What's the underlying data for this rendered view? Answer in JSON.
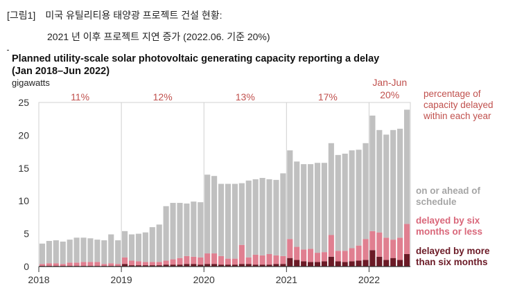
{
  "caption": {
    "tag": "[그림1]",
    "line1": "미국 유틸리티용 태양광 프로젝트 건설 현황:",
    "line2": "2021 년 이후 프로젝트 지연 증가 (2022.06. 기준 20%)"
  },
  "chart_data": {
    "type": "bar",
    "stacked": true,
    "title": "Planned utility-scale solar photovoltaic generating capacity reporting a delay",
    "subtitle": "(Jan 2018–Jun 2022)",
    "ylabel": "gigawatts",
    "ylim": [
      0,
      25
    ],
    "yticks": [
      "0",
      "5",
      "10",
      "15",
      "20",
      "25"
    ],
    "xticks": [
      "2018",
      "2019",
      "2020",
      "2021",
      "2022"
    ],
    "grid": "vertical year lines",
    "legend_placement": "right",
    "annotations": [
      {
        "text": "11%",
        "period": "2018"
      },
      {
        "text": "12%",
        "period": "2019"
      },
      {
        "text": "13%",
        "period": "2020"
      },
      {
        "text": "17%",
        "period": "2021"
      },
      {
        "text": "Jan-Jun",
        "period": "2022"
      },
      {
        "text": "20%",
        "period": "2022"
      }
    ],
    "categories": [
      "2018-01",
      "2018-02",
      "2018-03",
      "2018-04",
      "2018-05",
      "2018-06",
      "2018-07",
      "2018-08",
      "2018-09",
      "2018-10",
      "2018-11",
      "2018-12",
      "2019-01",
      "2019-02",
      "2019-03",
      "2019-04",
      "2019-05",
      "2019-06",
      "2019-07",
      "2019-08",
      "2019-09",
      "2019-10",
      "2019-11",
      "2019-12",
      "2020-01",
      "2020-02",
      "2020-03",
      "2020-04",
      "2020-05",
      "2020-06",
      "2020-07",
      "2020-08",
      "2020-09",
      "2020-10",
      "2020-11",
      "2020-12",
      "2021-01",
      "2021-02",
      "2021-03",
      "2021-04",
      "2021-05",
      "2021-06",
      "2021-07",
      "2021-08",
      "2021-09",
      "2021-10",
      "2021-11",
      "2021-12",
      "2022-01",
      "2022-02",
      "2022-03",
      "2022-04",
      "2022-05",
      "2022-06"
    ],
    "series": [
      {
        "name": "delayed by more than six months",
        "color": "#6b1a26",
        "values": [
          0.1,
          0.1,
          0.1,
          0.1,
          0.1,
          0.1,
          0.1,
          0.1,
          0.1,
          0.1,
          0.1,
          0.1,
          0.4,
          0.2,
          0.2,
          0.2,
          0.2,
          0.2,
          0.3,
          0.3,
          0.3,
          0.4,
          0.4,
          0.3,
          0.4,
          0.4,
          0.3,
          0.3,
          0.3,
          0.4,
          0.4,
          0.3,
          0.3,
          0.3,
          0.4,
          0.4,
          1.3,
          1.0,
          0.8,
          0.7,
          0.7,
          0.8,
          1.5,
          0.8,
          0.7,
          0.8,
          0.9,
          1.0,
          2.5,
          1.5,
          1.0,
          1.3,
          1.0,
          1.9
        ]
      },
      {
        "name": "delayed by six months or less",
        "color": "#e07f90",
        "values": [
          0.3,
          0.4,
          0.4,
          0.3,
          0.5,
          0.5,
          0.6,
          0.6,
          0.6,
          0.3,
          0.4,
          0.3,
          1.0,
          0.7,
          0.6,
          0.5,
          0.5,
          0.5,
          0.6,
          0.8,
          1.0,
          1.2,
          1.1,
          1.1,
          1.6,
          1.6,
          1.3,
          0.9,
          0.9,
          2.9,
          1.0,
          1.5,
          1.4,
          1.6,
          1.3,
          1.2,
          2.9,
          2.0,
          1.8,
          2.0,
          1.4,
          1.4,
          3.3,
          1.6,
          1.7,
          2.0,
          2.3,
          3.2,
          2.9,
          3.7,
          3.4,
          2.8,
          3.4,
          4.6
        ]
      },
      {
        "name": "on or ahead of schedule",
        "color": "#c0c0c0",
        "values": [
          3.1,
          3.4,
          3.5,
          3.4,
          3.5,
          3.8,
          3.7,
          3.6,
          3.4,
          3.6,
          4.4,
          3.6,
          4.0,
          4.0,
          4.2,
          4.5,
          5.3,
          5.7,
          8.3,
          8.6,
          8.4,
          8.0,
          8.4,
          8.4,
          12.0,
          11.8,
          11.0,
          11.4,
          11.4,
          9.4,
          11.7,
          11.5,
          11.8,
          11.4,
          11.5,
          12.6,
          13.5,
          13.0,
          13.0,
          12.9,
          13.7,
          13.6,
          14.0,
          14.6,
          14.8,
          14.9,
          14.6,
          14.6,
          17.6,
          15.6,
          15.7,
          16.7,
          16.6,
          17.4
        ]
      }
    ]
  },
  "legend": {
    "pct": "percentage of\ncapacity delayed\nwithin each year",
    "on": "on or ahead of\nschedule",
    "less": "delayed by six\nmonths or less",
    "more": "delayed by more\nthan six months"
  }
}
